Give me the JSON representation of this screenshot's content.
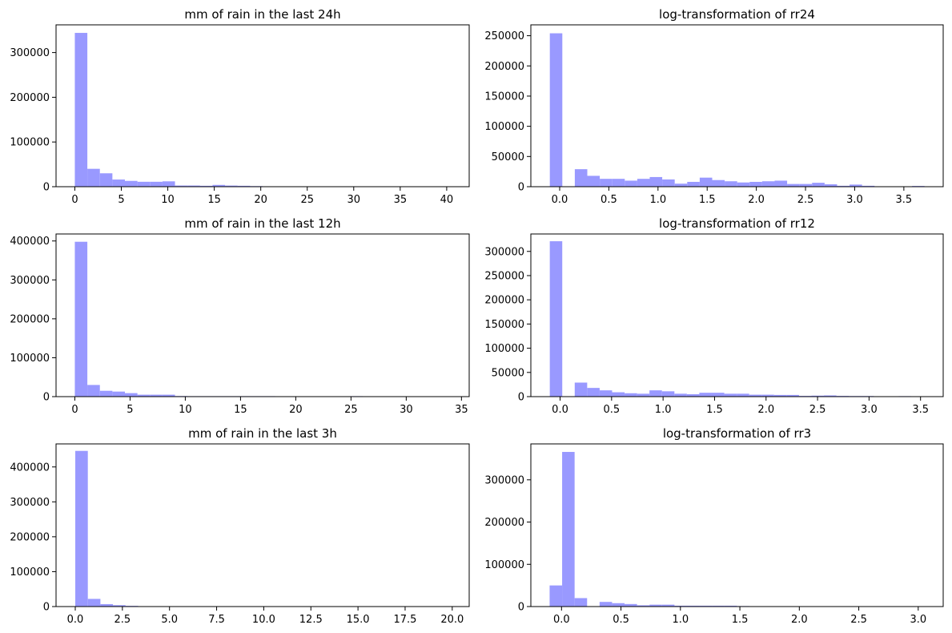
{
  "bar_color": "#9999ff",
  "chart_data": [
    {
      "type": "bar",
      "title": "mm of rain in the last 24h",
      "xlim": [
        -2.02,
        42.42
      ],
      "ylim": [
        0,
        362000
      ],
      "xticks": [
        0,
        5,
        10,
        15,
        20,
        25,
        30,
        35,
        40
      ],
      "xtick_labels": [
        "0",
        "5",
        "10",
        "15",
        "20",
        "25",
        "30",
        "35",
        "40"
      ],
      "yticks": [
        0,
        100000,
        200000,
        300000
      ],
      "ytick_labels": [
        "0",
        "100000",
        "200000",
        "300000"
      ],
      "bin_start": 0,
      "bin_width": 1.3467,
      "values": [
        344000,
        40000,
        30000,
        16000,
        13000,
        11000,
        11000,
        12000,
        2600,
        2600,
        2000,
        4000,
        2500,
        2000,
        1300,
        800,
        600,
        500,
        400,
        400,
        300,
        300,
        300,
        300,
        300,
        300,
        300,
        300,
        300,
        300
      ]
    },
    {
      "type": "bar",
      "title": "log-transformation of rr24",
      "xlim": [
        -0.293,
        3.9
      ],
      "ylim": [
        0,
        268000
      ],
      "xticks": [
        0,
        0.5,
        1.0,
        1.5,
        2.0,
        2.5,
        3.0,
        3.5
      ],
      "xtick_labels": [
        "0.0",
        "0.5",
        "1.0",
        "1.5",
        "2.0",
        "2.5",
        "3.0",
        "3.5"
      ],
      "yticks": [
        0,
        50000,
        100000,
        150000,
        200000,
        250000
      ],
      "ytick_labels": [
        "0",
        "50000",
        "100000",
        "150000",
        "200000",
        "250000"
      ],
      "bin_start": -0.1,
      "bin_width": 0.127,
      "values": [
        254000,
        0,
        29000,
        18000,
        13000,
        13000,
        10000,
        13000,
        16000,
        12000,
        5000,
        8000,
        15000,
        11000,
        9000,
        7000,
        8000,
        9000,
        10000,
        4500,
        4500,
        6500,
        4000,
        1500,
        3500,
        1500,
        500,
        500,
        400,
        1200
      ]
    },
    {
      "type": "bar",
      "title": "mm of rain in the last 12h",
      "xlim": [
        -1.7,
        35.7
      ],
      "ylim": [
        0,
        418000
      ],
      "xticks": [
        0,
        5,
        10,
        15,
        20,
        25,
        30,
        35
      ],
      "xtick_labels": [
        "0",
        "5",
        "10",
        "15",
        "20",
        "25",
        "30",
        "35"
      ],
      "yticks": [
        0,
        100000,
        200000,
        300000,
        400000
      ],
      "ytick_labels": [
        "0",
        "100000",
        "200000",
        "300000",
        "400000"
      ],
      "bin_start": 0,
      "bin_width": 1.1333,
      "values": [
        398000,
        30000,
        15000,
        13000,
        9000,
        5000,
        5000,
        5000,
        1500,
        1200,
        1200,
        1200,
        1200,
        1200,
        1200,
        1200,
        700,
        1000,
        500,
        500,
        500,
        500,
        1200,
        500,
        300,
        300,
        1000,
        300,
        300,
        300
      ]
    },
    {
      "type": "bar",
      "title": "log-transformation of rr12",
      "xlim": [
        -0.284,
        3.72
      ],
      "ylim": [
        0,
        336000
      ],
      "xticks": [
        0,
        0.5,
        1.0,
        1.5,
        2.0,
        2.5,
        3.0,
        3.5
      ],
      "xtick_labels": [
        "0.0",
        "0.5",
        "1.0",
        "1.5",
        "2.0",
        "2.5",
        "3.0",
        "3.5"
      ],
      "yticks": [
        0,
        50000,
        100000,
        150000,
        200000,
        250000,
        300000
      ],
      "ytick_labels": [
        "0",
        "50000",
        "100000",
        "150000",
        "200000",
        "250000",
        "300000"
      ],
      "bin_start": -0.1,
      "bin_width": 0.121,
      "values": [
        321000,
        0,
        29000,
        18000,
        13000,
        9000,
        7000,
        6000,
        13000,
        11000,
        6000,
        5000,
        8000,
        8000,
        6000,
        6000,
        4000,
        4000,
        3500,
        3500,
        1500,
        2000,
        2500,
        1500,
        1200,
        1200,
        700,
        700,
        1000,
        700
      ]
    },
    {
      "type": "bar",
      "title": "mm of rain in the last 3h",
      "xlim": [
        -1.02,
        20.9
      ],
      "ylim": [
        0,
        466000
      ],
      "xticks": [
        0,
        2.5,
        5.0,
        7.5,
        10.0,
        12.5,
        15.0,
        17.5,
        20.0
      ],
      "xtick_labels": [
        "0.0",
        "2.5",
        "5.0",
        "7.5",
        "10.0",
        "12.5",
        "15.0",
        "17.5",
        "20.0"
      ],
      "yticks": [
        0,
        100000,
        200000,
        300000,
        400000
      ],
      "ytick_labels": [
        "0",
        "100000",
        "200000",
        "300000",
        "400000"
      ],
      "bin_start": 0,
      "bin_width": 0.6667,
      "values": [
        446000,
        22000,
        7000,
        4000,
        2000,
        1000,
        600,
        400,
        300,
        300,
        200,
        200,
        200,
        200,
        200,
        200,
        150,
        150,
        150,
        150,
        150,
        150,
        150,
        150,
        150,
        150,
        150,
        150,
        150,
        150
      ]
    },
    {
      "type": "bar",
      "title": "log-transformation of rr3",
      "xlim": [
        -0.258,
        3.21
      ],
      "ylim": [
        0,
        385000
      ],
      "xticks": [
        0,
        0.5,
        1.0,
        1.5,
        2.0,
        2.5,
        3.0
      ],
      "xtick_labels": [
        "0.0",
        "0.5",
        "1.0",
        "1.5",
        "2.0",
        "2.5",
        "3.0"
      ],
      "yticks": [
        0,
        100000,
        200000,
        300000
      ],
      "ytick_labels": [
        "0",
        "100000",
        "200000",
        "300000"
      ],
      "bin_start": -0.1,
      "bin_width": 0.105,
      "values": [
        50000,
        366000,
        20000,
        0,
        11000,
        8000,
        6000,
        3000,
        4500,
        4500,
        2000,
        2000,
        2000,
        2000,
        2000,
        1200,
        600,
        400,
        400,
        400,
        300,
        300,
        300,
        300,
        300,
        300,
        300,
        300,
        300,
        300
      ]
    }
  ]
}
